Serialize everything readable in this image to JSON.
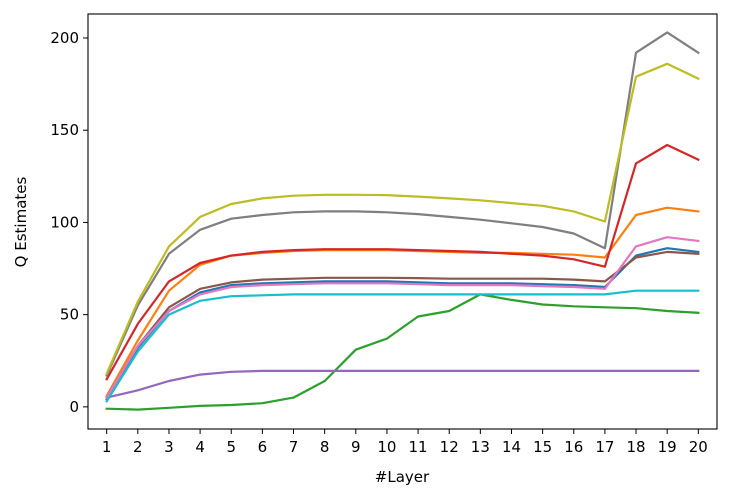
{
  "chart_data": {
    "type": "line",
    "title": "",
    "xlabel": "#Layer",
    "ylabel": "Q Estimates",
    "xlim": [
      0.4,
      20.6
    ],
    "ylim": [
      -12,
      213
    ],
    "grid": false,
    "x": [
      1,
      2,
      3,
      4,
      5,
      6,
      7,
      8,
      9,
      10,
      11,
      12,
      13,
      14,
      15,
      16,
      17,
      18,
      19,
      20
    ],
    "x_ticks": [
      "1",
      "2",
      "3",
      "4",
      "5",
      "6",
      "7",
      "8",
      "9",
      "10",
      "11",
      "12",
      "13",
      "14",
      "15",
      "16",
      "17",
      "18",
      "19",
      "20"
    ],
    "y_ticks": [
      0,
      50,
      100,
      150,
      200
    ],
    "series": [
      {
        "color": "#1f77b4",
        "values": [
          4,
          32,
          52,
          62,
          66,
          67,
          67.5,
          68,
          68,
          68,
          67.5,
          67,
          67,
          67,
          66.5,
          66,
          65,
          82,
          86,
          84
        ]
      },
      {
        "color": "#ff7f0e",
        "values": [
          6,
          36,
          63,
          77,
          82,
          83.5,
          84.5,
          85,
          85,
          85,
          84.5,
          84,
          83.5,
          83.5,
          83,
          82.5,
          81,
          104,
          108,
          106
        ]
      },
      {
        "color": "#2ca02c",
        "values": [
          -1,
          -1.5,
          -0.5,
          0.5,
          1,
          2,
          5,
          14,
          31,
          37,
          49,
          52,
          61,
          58,
          55.5,
          54.5,
          54,
          53.5,
          52,
          51
        ]
      },
      {
        "color": "#d62728",
        "values": [
          15,
          45,
          68,
          78,
          82,
          84,
          85,
          85.5,
          85.5,
          85.5,
          85,
          84.5,
          84,
          83,
          82,
          80,
          76,
          132,
          142,
          134
        ]
      },
      {
        "color": "#9467bd",
        "values": [
          5,
          9,
          14,
          17.5,
          19,
          19.5,
          19.5,
          19.5,
          19.5,
          19.5,
          19.5,
          19.5,
          19.5,
          19.5,
          19.5,
          19.5,
          19.5,
          19.5,
          19.5,
          19.5
        ]
      },
      {
        "color": "#8c564b",
        "values": [
          5,
          33,
          54,
          64,
          67.5,
          69,
          69.5,
          70,
          70,
          70,
          69.8,
          69.5,
          69.5,
          69.5,
          69.5,
          69,
          68,
          81,
          84,
          83
        ]
      },
      {
        "color": "#e377c2",
        "values": [
          5,
          33,
          52,
          61,
          65,
          66,
          66.5,
          67,
          67,
          67,
          66.5,
          66,
          66,
          66,
          65.5,
          65,
          64,
          87,
          92,
          90
        ]
      },
      {
        "color": "#7f7f7f",
        "values": [
          17,
          55,
          83,
          96,
          102,
          104,
          105.5,
          106,
          106,
          105.5,
          104.5,
          103,
          101.5,
          99.5,
          97.5,
          94,
          86,
          192,
          203,
          192
        ]
      },
      {
        "color": "#bcbd22",
        "values": [
          18,
          57,
          87,
          103,
          110,
          113,
          114.5,
          115,
          115,
          114.8,
          114,
          113,
          112,
          110.5,
          109,
          106,
          100.5,
          179,
          186,
          178
        ]
      },
      {
        "color": "#17becf",
        "values": [
          3,
          30,
          50,
          57.5,
          60,
          60.5,
          61,
          61,
          61,
          61,
          61,
          61,
          61,
          61,
          61,
          61,
          61,
          63,
          63,
          63
        ]
      }
    ]
  }
}
